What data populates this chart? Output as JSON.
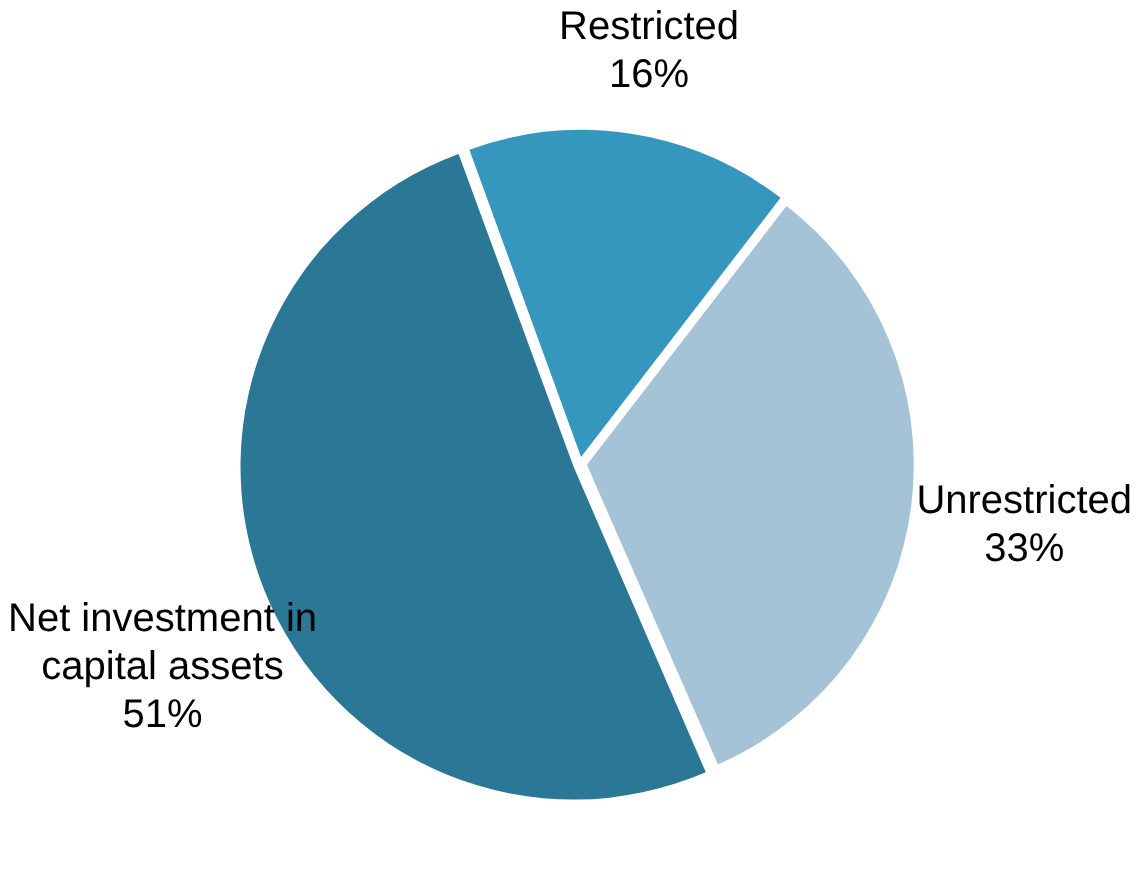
{
  "chart_data": {
    "type": "pie",
    "categories": [
      "Restricted",
      "Unrestricted",
      "Net investment in capital assets"
    ],
    "values": [
      16,
      33,
      51
    ],
    "value_labels": [
      "16%",
      "33%",
      "51%"
    ],
    "colors": [
      "#3597bd",
      "#a5c3d6",
      "#2b7896"
    ],
    "legend": false
  }
}
